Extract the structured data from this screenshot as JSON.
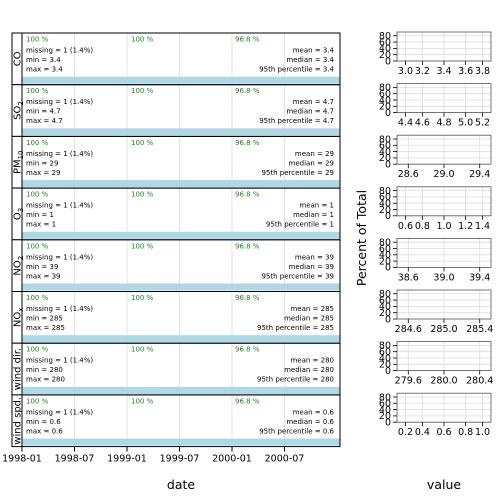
{
  "colors": {
    "bar_fill": "#add8e6",
    "pct_text": "#1a8a1a",
    "grid": "#dcdcdc",
    "frame": "#000000"
  },
  "chart_data": [
    {
      "type": "summary-timeline",
      "xlabel": "date",
      "x_ticks": [
        "1998-01",
        "1998-07",
        "1999-01",
        "1999-07",
        "2000-01",
        "2000-07"
      ],
      "year_percent_labels": [
        "100 %",
        "100 %",
        "96.8 %"
      ],
      "panels": [
        {
          "name": "CO",
          "sub": "",
          "stats": [
            "missing = 1 (1.4%)",
            "min = 3.4",
            "max = 3.4"
          ],
          "summary": [
            "mean = 3.4",
            "median = 3.4",
            "95th percentile = 3.4"
          ]
        },
        {
          "name": "SO",
          "sub": "2",
          "stats": [
            "missing = 1 (1.4%)",
            "min = 4.7",
            "max = 4.7"
          ],
          "summary": [
            "mean = 4.7",
            "median = 4.7",
            "95th percentile = 4.7"
          ]
        },
        {
          "name": "PM",
          "sub": "10",
          "stats": [
            "missing = 1 (1.4%)",
            "min = 29",
            "max = 29"
          ],
          "summary": [
            "mean = 29",
            "median = 29",
            "95th percentile = 29"
          ]
        },
        {
          "name": "O",
          "sub": "3",
          "stats": [
            "missing = 1 (1.4%)",
            "min = 1",
            "max = 1"
          ],
          "summary": [
            "mean = 1",
            "median = 1",
            "95th percentile = 1"
          ]
        },
        {
          "name": "NO",
          "sub": "2",
          "stats": [
            "missing = 1 (1.4%)",
            "min = 39",
            "max = 39"
          ],
          "summary": [
            "mean = 39",
            "median = 39",
            "95th percentile = 39"
          ]
        },
        {
          "name": "NO",
          "sub": "x",
          "stats": [
            "missing = 1 (1.4%)",
            "min = 285",
            "max = 285"
          ],
          "summary": [
            "mean = 285",
            "median = 285",
            "95th percentile = 285"
          ]
        },
        {
          "name": "wind dir.",
          "sub": "",
          "stats": [
            "missing = 1 (1.4%)",
            "min = 280",
            "max = 280"
          ],
          "summary": [
            "mean = 280",
            "median = 280",
            "95th percentile = 280"
          ]
        },
        {
          "name": "wind spd.",
          "sub": "",
          "stats": [
            "missing = 1 (1.4%)",
            "min = 0.6",
            "max = 0.6"
          ],
          "summary": [
            "mean = 0.6",
            "median = 0.6",
            "95th percentile = 0.6"
          ]
        }
      ]
    },
    {
      "type": "histogram",
      "xlabel": "value",
      "ylabel": "Percent of Total",
      "y_ticks": [
        "0",
        "20",
        "40",
        "60",
        "80"
      ],
      "panels": [
        {
          "name": "CO",
          "x_ticks": [
            "3.0",
            "3.2",
            "3.4",
            "3.6",
            "3.8"
          ]
        },
        {
          "name": "SO2",
          "x_ticks": [
            "4.4",
            "4.6",
            "4.8",
            "5.0",
            "5.2"
          ]
        },
        {
          "name": "PM10",
          "x_ticks": [
            "28.6",
            "29.0",
            "29.4"
          ]
        },
        {
          "name": "O3",
          "x_ticks": [
            "0.6",
            "0.8",
            "1.0",
            "1.2",
            "1.4"
          ]
        },
        {
          "name": "NO2",
          "x_ticks": [
            "38.6",
            "39.0",
            "39.4"
          ]
        },
        {
          "name": "NOx",
          "x_ticks": [
            "284.6",
            "285.0",
            "285.4"
          ]
        },
        {
          "name": "wind dir.",
          "x_ticks": [
            "279.6",
            "280.0",
            "280.4"
          ]
        },
        {
          "name": "wind spd.",
          "x_ticks": [
            "0.2",
            "0.4",
            "0.6",
            "0.8",
            "1.0"
          ]
        }
      ]
    }
  ]
}
